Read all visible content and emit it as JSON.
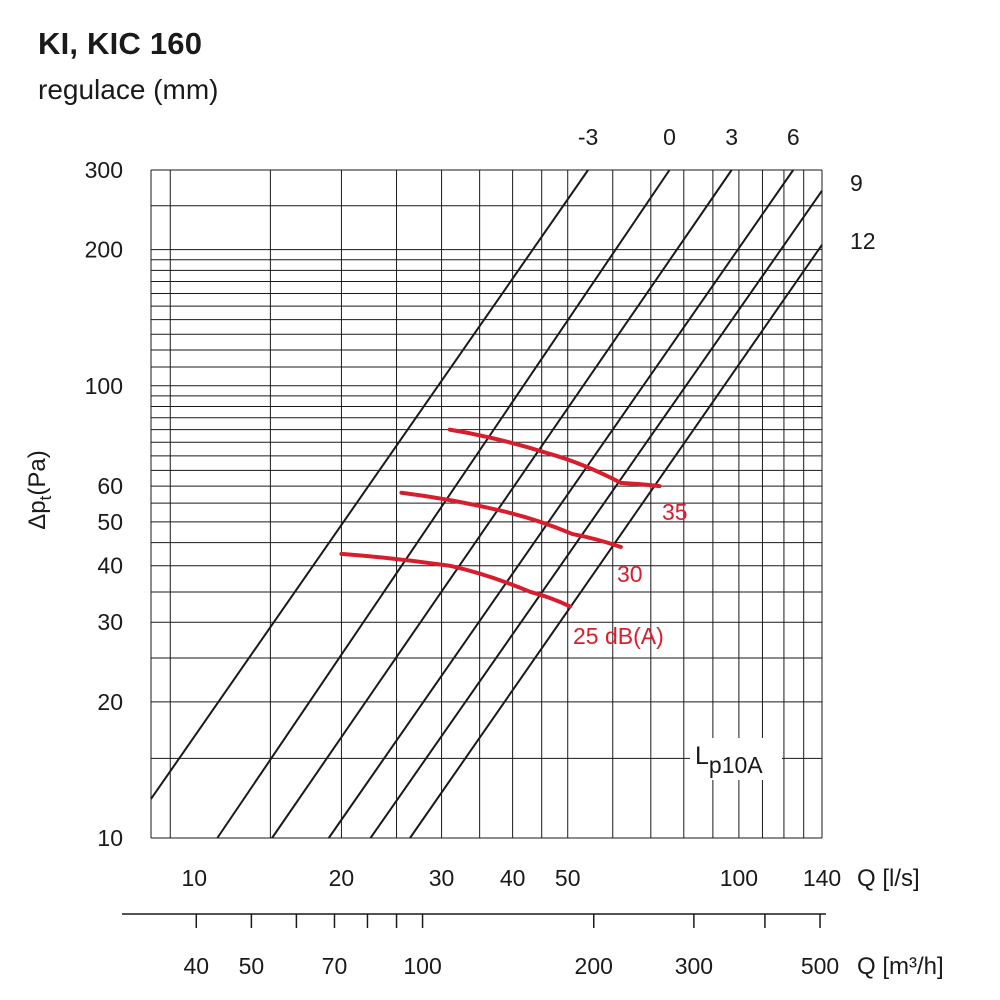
{
  "title": "KI, KIC 160",
  "subtitle": "regulace (mm)",
  "chart_data": {
    "type": "line",
    "title": "KI, KIC 160",
    "subtitle": "regulace (mm)",
    "x_scale": "log",
    "y_scale": "log",
    "xlim": [
      9.25,
      140
    ],
    "ylim": [
      10,
      300
    ],
    "xlabel": "Q [l/s]",
    "xlabel_secondary": "Q [m³/h]",
    "ylabel_main": "Δp",
    "ylabel_sub": "t",
    "ylabel_tail": "(Pa)",
    "grid": true,
    "x_ticks": [
      10,
      20,
      30,
      40,
      50,
      100,
      140
    ],
    "x_secondary_ticks": [
      40,
      50,
      70,
      100,
      200,
      300,
      500
    ],
    "y_ticks": [
      10,
      20,
      30,
      40,
      50,
      60,
      100,
      200,
      300
    ],
    "series_group_label": "regulace (mm)",
    "series": [
      {
        "name": "-3",
        "points": [
          [
            9.25,
            12.2
          ],
          [
            54.3,
            300
          ]
        ]
      },
      {
        "name": "0",
        "points": [
          [
            12.1,
            10
          ],
          [
            75.5,
            300
          ]
        ]
      },
      {
        "name": "3",
        "points": [
          [
            15.1,
            10
          ],
          [
            97.1,
            300
          ]
        ]
      },
      {
        "name": "6",
        "points": [
          [
            19.0,
            10
          ],
          [
            124.6,
            300
          ]
        ]
      },
      {
        "name": "9",
        "points": [
          [
            22.5,
            10
          ],
          [
            140,
            270
          ]
        ]
      },
      {
        "name": "12",
        "points": [
          [
            26.4,
            10
          ],
          [
            140,
            205
          ]
        ]
      }
    ],
    "noise_label_prefix": "L",
    "noise_label_sub": "p10A",
    "noise_curves": [
      {
        "name": "35",
        "color": "#d81e2c",
        "points": [
          [
            31.0,
            80
          ],
          [
            46.0,
            71
          ],
          [
            62.0,
            61
          ],
          [
            72.5,
            60
          ]
        ]
      },
      {
        "name": "30",
        "color": "#d81e2c",
        "points": [
          [
            25.5,
            58
          ],
          [
            38.0,
            53
          ],
          [
            51.0,
            47
          ],
          [
            62.0,
            44
          ]
        ]
      },
      {
        "name": "25 dB(A)",
        "color": "#d81e2c",
        "points": [
          [
            20.0,
            42.5
          ],
          [
            31.0,
            40
          ],
          [
            43.0,
            35
          ],
          [
            50.5,
            32.5
          ]
        ]
      }
    ]
  }
}
